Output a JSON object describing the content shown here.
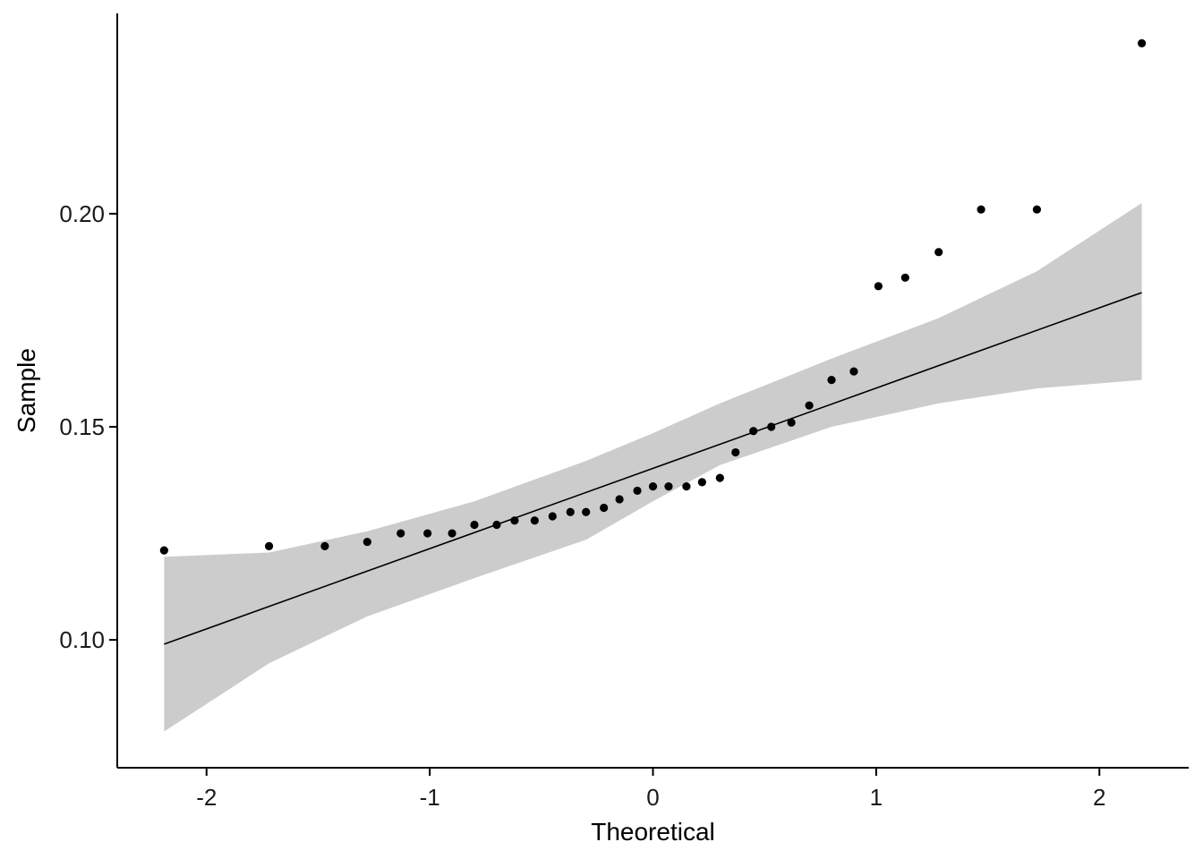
{
  "chart_data": {
    "type": "scatter",
    "subtype": "qq-plot",
    "title": "",
    "xlabel": "Theoretical",
    "ylabel": "Sample",
    "xlim": [
      -2.4,
      2.4
    ],
    "ylim": [
      0.07,
      0.247
    ],
    "x_ticks": [
      -2,
      -1,
      0,
      1,
      2
    ],
    "x_tick_labels": [
      "-2",
      "-1",
      "0",
      "1",
      "2"
    ],
    "y_ticks": [
      0.1,
      0.15,
      0.2
    ],
    "y_tick_labels": [
      "0.10",
      "0.15",
      "0.20"
    ],
    "grid": false,
    "legend": "none",
    "colors": {
      "points": "#000000",
      "line": "#000000",
      "band": "#cccccc",
      "background": "#ffffff"
    },
    "series": [
      {
        "kind": "points",
        "x": [
          -2.19,
          -1.72,
          -1.47,
          -1.28,
          -1.13,
          -1.01,
          -0.9,
          -0.8,
          -0.7,
          -0.62,
          -0.53,
          -0.45,
          -0.37,
          -0.3,
          -0.22,
          -0.15,
          -0.07,
          0.0,
          0.07,
          0.15,
          0.22,
          0.3,
          0.37,
          0.45,
          0.53,
          0.62,
          0.7,
          0.8,
          0.9,
          1.01,
          1.13,
          1.28,
          1.47,
          1.72,
          2.19
        ],
        "y": [
          0.121,
          0.122,
          0.122,
          0.123,
          0.125,
          0.125,
          0.125,
          0.127,
          0.127,
          0.128,
          0.128,
          0.129,
          0.13,
          0.13,
          0.131,
          0.133,
          0.135,
          0.136,
          0.136,
          0.136,
          0.137,
          0.138,
          0.144,
          0.149,
          0.15,
          0.151,
          0.155,
          0.161,
          0.163,
          0.183,
          0.185,
          0.191,
          0.201,
          0.201,
          0.24
        ]
      },
      {
        "kind": "reference-line",
        "x": [
          -2.19,
          2.19
        ],
        "y": [
          0.099,
          0.1815
        ]
      },
      {
        "kind": "confidence-band",
        "x": [
          -2.19,
          -1.72,
          -1.28,
          -0.8,
          -0.3,
          0.0,
          0.3,
          0.8,
          1.28,
          1.72,
          2.19
        ],
        "upper": [
          0.1195,
          0.1205,
          0.1255,
          0.1325,
          0.142,
          0.1485,
          0.1555,
          0.166,
          0.1755,
          0.1865,
          0.2025
        ],
        "lower": [
          0.0785,
          0.0945,
          0.1055,
          0.1145,
          0.1235,
          0.1325,
          0.141,
          0.15,
          0.1555,
          0.159,
          0.161
        ]
      }
    ]
  }
}
